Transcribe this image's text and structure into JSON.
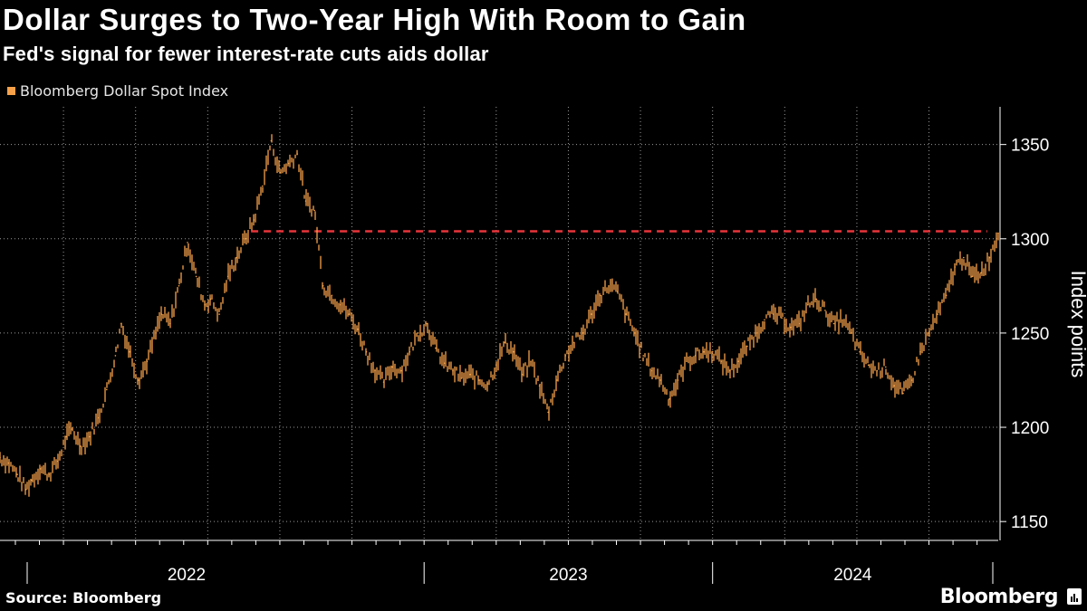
{
  "header": {
    "title": "Dollar Surges to Two-Year High With Room to Gain",
    "subtitle": "Fed's signal for fewer interest-rate cuts aids dollar"
  },
  "legend": {
    "label": "Bloomberg Dollar Spot Index",
    "color": "#f6a14a"
  },
  "footer": {
    "source": "Source: Bloomberg",
    "brand": "Bloomberg"
  },
  "colors": {
    "series": "#f6a14a",
    "reference": "#e8343b",
    "grid": "#9a9a9a",
    "axis": "#ffffff"
  },
  "chart_data": {
    "type": "line",
    "title": "Dollar Surges to Two-Year High With Room to Gain",
    "subtitle": "Fed's signal for fewer interest-rate cuts aids dollar",
    "ylabel": "Index points",
    "xlabel": "",
    "ylim": [
      1140,
      1370
    ],
    "yticks": [
      1150,
      1200,
      1250,
      1300,
      1350
    ],
    "xlim": [
      2021.53,
      2024.99
    ],
    "year_labels": [
      {
        "label": "2022",
        "start": 2022.0,
        "end": 2023.0
      },
      {
        "label": "2023",
        "start": 2023.0,
        "end": 2024.0
      },
      {
        "label": "2024",
        "start": 2024.0,
        "end": 2024.99
      }
    ],
    "reference_line": {
      "style": "dashed",
      "value": 1304,
      "x_start": 2022.4,
      "x_end": 2024.99
    },
    "series": [
      {
        "name": "Bloomberg Dollar Spot Index",
        "x": [
          2021.53,
          2021.56,
          2021.59,
          2021.62,
          2021.64,
          2021.67,
          2021.7,
          2021.73,
          2021.76,
          2021.78,
          2021.81,
          2021.84,
          2021.87,
          2021.9,
          2021.93,
          2021.95,
          2021.98,
          2022.01,
          2022.04,
          2022.07,
          2022.09,
          2022.12,
          2022.15,
          2022.18,
          2022.21,
          2022.24,
          2022.26,
          2022.29,
          2022.32,
          2022.35,
          2022.38,
          2022.41,
          2022.44,
          2022.47,
          2022.5,
          2022.53,
          2022.56,
          2022.59,
          2022.62,
          2022.65,
          2022.68,
          2022.71,
          2022.74,
          2022.77,
          2022.8,
          2022.83,
          2022.86,
          2022.89,
          2022.92,
          2022.95,
          2022.98,
          2023.01,
          2023.04,
          2023.07,
          2023.1,
          2023.13,
          2023.16,
          2023.19,
          2023.22,
          2023.25,
          2023.28,
          2023.31,
          2023.34,
          2023.37,
          2023.4,
          2023.43,
          2023.46,
          2023.49,
          2023.52,
          2023.55,
          2023.58,
          2023.61,
          2023.64,
          2023.67,
          2023.7,
          2023.73,
          2023.76,
          2023.79,
          2023.82,
          2023.85,
          2023.88,
          2023.91,
          2023.94,
          2023.97,
          2024.0,
          2024.03,
          2024.06,
          2024.09,
          2024.12,
          2024.15,
          2024.18,
          2024.21,
          2024.24,
          2024.27,
          2024.3,
          2024.33,
          2024.36,
          2024.39,
          2024.42,
          2024.45,
          2024.48,
          2024.51,
          2024.54,
          2024.57,
          2024.6,
          2024.63,
          2024.66,
          2024.69,
          2024.72,
          2024.75,
          2024.78,
          2024.81,
          2024.84,
          2024.87,
          2024.9,
          2024.93,
          2024.96,
          2024.99
        ],
        "values": [
          1184,
          1181,
          1175,
          1167,
          1172,
          1178,
          1175,
          1182,
          1195,
          1199,
          1190,
          1195,
          1205,
          1220,
          1238,
          1255,
          1240,
          1225,
          1235,
          1250,
          1260,
          1255,
          1275,
          1298,
          1280,
          1265,
          1268,
          1260,
          1280,
          1290,
          1300,
          1310,
          1328,
          1352,
          1335,
          1340,
          1345,
          1320,
          1315,
          1275,
          1270,
          1265,
          1260,
          1252,
          1240,
          1230,
          1224,
          1232,
          1230,
          1240,
          1250,
          1255,
          1242,
          1234,
          1230,
          1226,
          1228,
          1225,
          1223,
          1233,
          1245,
          1240,
          1228,
          1235,
          1222,
          1208,
          1225,
          1238,
          1245,
          1250,
          1260,
          1270,
          1275,
          1272,
          1260,
          1250,
          1238,
          1230,
          1225,
          1215,
          1225,
          1235,
          1238,
          1240,
          1240,
          1235,
          1230,
          1235,
          1243,
          1250,
          1257,
          1260,
          1258,
          1253,
          1255,
          1265,
          1268,
          1262,
          1255,
          1257,
          1250,
          1240,
          1233,
          1230,
          1232,
          1222,
          1218,
          1225,
          1240,
          1250,
          1260,
          1270,
          1285,
          1290,
          1280,
          1282,
          1290,
          1303
        ]
      }
    ]
  }
}
